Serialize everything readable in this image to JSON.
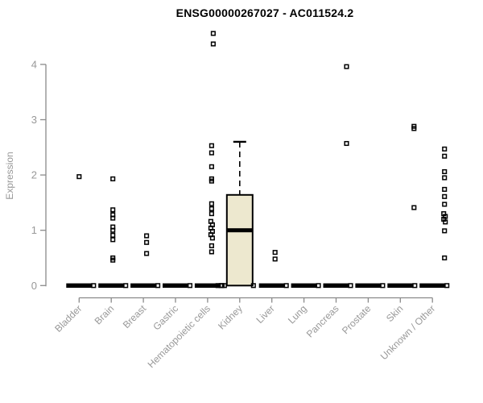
{
  "title": "ENSG00000267027 - AC011524.2",
  "colors": {
    "title": "#000000",
    "axis": "#8a8a8a",
    "tick_label": "#989898",
    "box_fill": "#ede8cf",
    "box_stroke": "#000000",
    "point": "#000000",
    "background": "#ffffff"
  },
  "chart_data": {
    "type": "boxplot",
    "title": "ENSG00000267027 - AC011524.2",
    "xlabel": "",
    "ylabel": "Expression",
    "yticks": [
      0,
      1,
      2,
      3,
      4
    ],
    "ylim": [
      0,
      4.65
    ],
    "grid": false,
    "legend": false,
    "categories": [
      "Bladder",
      "Brain",
      "Breast",
      "Gastric",
      "Hematopoietic cells",
      "Kidney",
      "Liver",
      "Lung",
      "Pancreas",
      "Prostate",
      "Skin",
      "Unknown / Other"
    ],
    "boxes": [
      {
        "category": "Bladder",
        "q1": 0,
        "median": 0,
        "q3": 0,
        "whisker_low": 0,
        "whisker_high": 0
      },
      {
        "category": "Brain",
        "q1": 0,
        "median": 0,
        "q3": 0,
        "whisker_low": 0,
        "whisker_high": 0
      },
      {
        "category": "Breast",
        "q1": 0,
        "median": 0,
        "q3": 0,
        "whisker_low": 0,
        "whisker_high": 0
      },
      {
        "category": "Gastric",
        "q1": 0,
        "median": 0,
        "q3": 0,
        "whisker_low": 0,
        "whisker_high": 0
      },
      {
        "category": "Hematopoietic cells",
        "q1": 0,
        "median": 0,
        "q3": 0,
        "whisker_low": 0,
        "whisker_high": 0
      },
      {
        "category": "Kidney",
        "q1": 0,
        "median": 1.0,
        "q3": 1.64,
        "whisker_low": 0,
        "whisker_high": 2.6
      },
      {
        "category": "Liver",
        "q1": 0,
        "median": 0,
        "q3": 0,
        "whisker_low": 0,
        "whisker_high": 0
      },
      {
        "category": "Lung",
        "q1": 0,
        "median": 0,
        "q3": 0,
        "whisker_low": 0,
        "whisker_high": 0
      },
      {
        "category": "Pancreas",
        "q1": 0,
        "median": 0,
        "q3": 0,
        "whisker_low": 0,
        "whisker_high": 0
      },
      {
        "category": "Prostate",
        "q1": 0,
        "median": 0,
        "q3": 0,
        "whisker_low": 0,
        "whisker_high": 0
      },
      {
        "category": "Skin",
        "q1": 0,
        "median": 0,
        "q3": 0,
        "whisker_low": 0,
        "whisker_high": 0
      },
      {
        "category": "Unknown / Other",
        "q1": 0,
        "median": 0,
        "q3": 0,
        "whisker_low": 0,
        "whisker_high": 0
      }
    ],
    "points": [
      {
        "category": "Bladder",
        "pts": [
          {
            "v": 1.97,
            "dx": 0
          },
          {
            "v": 0,
            "dx": 18
          }
        ]
      },
      {
        "category": "Brain",
        "pts": [
          {
            "v": 1.93,
            "dx": 2
          },
          {
            "v": 1.37,
            "dx": 2
          },
          {
            "v": 1.28,
            "dx": 2
          },
          {
            "v": 1.22,
            "dx": 2
          },
          {
            "v": 1.06,
            "dx": 2
          },
          {
            "v": 1.0,
            "dx": 2
          },
          {
            "v": 0.91,
            "dx": 2
          },
          {
            "v": 0.83,
            "dx": 2
          },
          {
            "v": 0.5,
            "dx": 2
          },
          {
            "v": 0.46,
            "dx": 2
          },
          {
            "v": 0,
            "dx": 18
          }
        ]
      },
      {
        "category": "Breast",
        "pts": [
          {
            "v": 0.9,
            "dx": 4
          },
          {
            "v": 0.78,
            "dx": 4
          },
          {
            "v": 0.58,
            "dx": 4
          },
          {
            "v": 0,
            "dx": 18
          }
        ]
      },
      {
        "category": "Gastric",
        "pts": [
          {
            "v": 0,
            "dx": 18
          }
        ]
      },
      {
        "category": "Hematopoietic cells",
        "pts": [
          {
            "v": 4.56,
            "dx": 7
          },
          {
            "v": 4.37,
            "dx": 7
          },
          {
            "v": 2.53,
            "dx": 5
          },
          {
            "v": 2.4,
            "dx": 5
          },
          {
            "v": 2.15,
            "dx": 5
          },
          {
            "v": 1.93,
            "dx": 5
          },
          {
            "v": 1.89,
            "dx": 5
          },
          {
            "v": 1.48,
            "dx": 5
          },
          {
            "v": 1.39,
            "dx": 5
          },
          {
            "v": 1.3,
            "dx": 5
          },
          {
            "v": 1.16,
            "dx": 4
          },
          {
            "v": 1.1,
            "dx": 6
          },
          {
            "v": 1.04,
            "dx": 4
          },
          {
            "v": 0.98,
            "dx": 6
          },
          {
            "v": 0.92,
            "dx": 4
          },
          {
            "v": 0.86,
            "dx": 6
          },
          {
            "v": 0.72,
            "dx": 5
          },
          {
            "v": 0.61,
            "dx": 5
          },
          {
            "v": 0,
            "dx": 18
          }
        ]
      },
      {
        "category": "Kidney",
        "pts": [
          {
            "v": 0,
            "dx": -27
          },
          {
            "v": 0,
            "dx": -23
          },
          {
            "v": 0,
            "dx": -19
          },
          {
            "v": 0,
            "dx": 17
          }
        ]
      },
      {
        "category": "Liver",
        "pts": [
          {
            "v": 0.6,
            "dx": 4
          },
          {
            "v": 0.48,
            "dx": 4
          },
          {
            "v": 0,
            "dx": 18
          }
        ]
      },
      {
        "category": "Lung",
        "pts": [
          {
            "v": 0,
            "dx": 18
          }
        ]
      },
      {
        "category": "Pancreas",
        "pts": [
          {
            "v": 3.96,
            "dx": 13
          },
          {
            "v": 2.57,
            "dx": 13
          },
          {
            "v": 0,
            "dx": 18
          }
        ]
      },
      {
        "category": "Prostate",
        "pts": [
          {
            "v": 0,
            "dx": 18
          }
        ]
      },
      {
        "category": "Skin",
        "pts": [
          {
            "v": 2.88,
            "dx": 17
          },
          {
            "v": 2.84,
            "dx": 17
          },
          {
            "v": 1.41,
            "dx": 17
          },
          {
            "v": 0,
            "dx": 18
          }
        ]
      },
      {
        "category": "Unknown / Other",
        "pts": [
          {
            "v": 2.47,
            "dx": 15
          },
          {
            "v": 2.34,
            "dx": 15
          },
          {
            "v": 2.06,
            "dx": 15
          },
          {
            "v": 1.95,
            "dx": 15
          },
          {
            "v": 1.74,
            "dx": 15
          },
          {
            "v": 1.61,
            "dx": 15
          },
          {
            "v": 1.47,
            "dx": 15
          },
          {
            "v": 1.3,
            "dx": 14
          },
          {
            "v": 1.25,
            "dx": 16
          },
          {
            "v": 1.2,
            "dx": 14
          },
          {
            "v": 1.15,
            "dx": 16
          },
          {
            "v": 0.99,
            "dx": 15
          },
          {
            "v": 0.5,
            "dx": 15
          },
          {
            "v": 0,
            "dx": 18
          }
        ]
      }
    ]
  }
}
